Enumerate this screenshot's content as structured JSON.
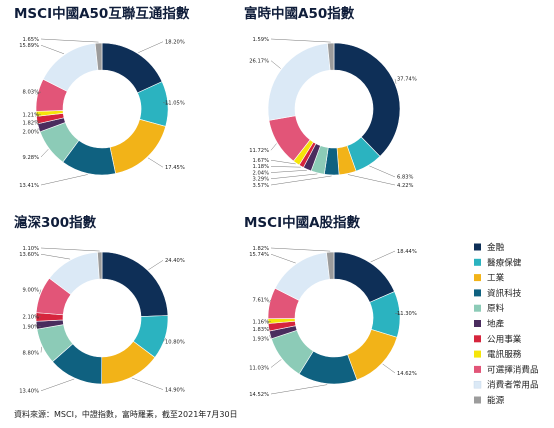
{
  "palette": {
    "金融": "#0e2f57",
    "醫療保健": "#2bb3c0",
    "工業": "#f2b318",
    "資訊科技": "#0f6180",
    "原料": "#8ccbb7",
    "地產": "#4a2c5e",
    "公用事業": "#d6253d",
    "電訊服務": "#f5e50a",
    "可選擇消費品": "#e25578",
    "消費者常用品": "#dbe9f6",
    "能源": "#9c9c9c"
  },
  "legend": [
    "金融",
    "醫療保健",
    "工業",
    "資訊科技",
    "原料",
    "地產",
    "公用事業",
    "電訊服務",
    "可選擇消費品",
    "消費者常用品",
    "能源"
  ],
  "source_note": "資料來源：MSCI，中證指數，富時羅素，截至2021年7月30日",
  "chart_data": [
    {
      "type": "pie",
      "title": "MSCI中國A50互聯互通指數",
      "series": [
        {
          "name": "金融",
          "value": 18.2,
          "label": "18.20%"
        },
        {
          "name": "醫療保健",
          "value": 11.05,
          "label": "11.05%"
        },
        {
          "name": "工業",
          "value": 17.45,
          "label": "17.45%"
        },
        {
          "name": "資訊科技",
          "value": 13.41,
          "label": "13.41%"
        },
        {
          "name": "原料",
          "value": 9.28,
          "label": "9.28%"
        },
        {
          "name": "地產",
          "value": 2.0,
          "label": "2.00%"
        },
        {
          "name": "公用事業",
          "value": 1.82,
          "label": "1.82%"
        },
        {
          "name": "電訊服務",
          "value": 1.21,
          "label": "1.21%"
        },
        {
          "name": "可選擇消費品",
          "value": 8.03,
          "label": "8.03%"
        },
        {
          "name": "消費者常用品",
          "value": 15.89,
          "label": "15.89%"
        },
        {
          "name": "能源",
          "value": 1.65,
          "label": "1.65%"
        }
      ]
    },
    {
      "type": "pie",
      "title": "富時中國A50指數",
      "series": [
        {
          "name": "金融",
          "value": 37.74,
          "label": "37.74%"
        },
        {
          "name": "醫療保健",
          "value": 6.83,
          "label": "6.83%"
        },
        {
          "name": "工業",
          "value": 4.22,
          "label": "4.22%"
        },
        {
          "name": "資訊科技",
          "value": 3.57,
          "label": "3.57%"
        },
        {
          "name": "原料",
          "value": 3.29,
          "label": "3.29%"
        },
        {
          "name": "地產",
          "value": 2.04,
          "label": "2.04%"
        },
        {
          "name": "公用事業",
          "value": 1.18,
          "label": "1.18%"
        },
        {
          "name": "電訊服務",
          "value": 1.67,
          "label": "1.67%"
        },
        {
          "name": "可選擇消費品",
          "value": 11.72,
          "label": "11.72%"
        },
        {
          "name": "消費者常用品",
          "value": 26.17,
          "label": "26.17%"
        },
        {
          "name": "能源",
          "value": 1.59,
          "label": "1.59%"
        }
      ]
    },
    {
      "type": "pie",
      "title": "滬深300指數",
      "series": [
        {
          "name": "金融",
          "value": 24.4,
          "label": "24.40%"
        },
        {
          "name": "醫療保健",
          "value": 10.8,
          "label": "10.80%"
        },
        {
          "name": "工業",
          "value": 14.9,
          "label": "14.90%"
        },
        {
          "name": "資訊科技",
          "value": 13.4,
          "label": "13.40%"
        },
        {
          "name": "原料",
          "value": 8.8,
          "label": "8.80%"
        },
        {
          "name": "地產",
          "value": 1.9,
          "label": "1.90%"
        },
        {
          "name": "公用事業",
          "value": 2.1,
          "label": "2.10%"
        },
        {
          "name": "可選擇消費品",
          "value": 9.0,
          "label": "9.00%"
        },
        {
          "name": "消費者常用品",
          "value": 13.6,
          "label": "13.60%"
        },
        {
          "name": "能源",
          "value": 1.1,
          "label": "1.10%"
        }
      ]
    },
    {
      "type": "pie",
      "title": "MSCI中國A股指數",
      "series": [
        {
          "name": "金融",
          "value": 18.44,
          "label": "18.44%"
        },
        {
          "name": "醫療保健",
          "value": 11.3,
          "label": "11.30%"
        },
        {
          "name": "工業",
          "value": 14.62,
          "label": "14.62%"
        },
        {
          "name": "資訊科技",
          "value": 14.52,
          "label": "14.52%"
        },
        {
          "name": "原料",
          "value": 11.03,
          "label": "11.03%"
        },
        {
          "name": "地產",
          "value": 1.93,
          "label": "1.93%"
        },
        {
          "name": "公用事業",
          "value": 1.83,
          "label": "1.83%"
        },
        {
          "name": "電訊服務",
          "value": 1.16,
          "label": "1.16%"
        },
        {
          "name": "可選擇消費品",
          "value": 7.61,
          "label": "7.61%"
        },
        {
          "name": "消費者常用品",
          "value": 15.74,
          "label": "15.74%"
        },
        {
          "name": "能源",
          "value": 1.82,
          "label": "1.82%"
        }
      ]
    }
  ]
}
